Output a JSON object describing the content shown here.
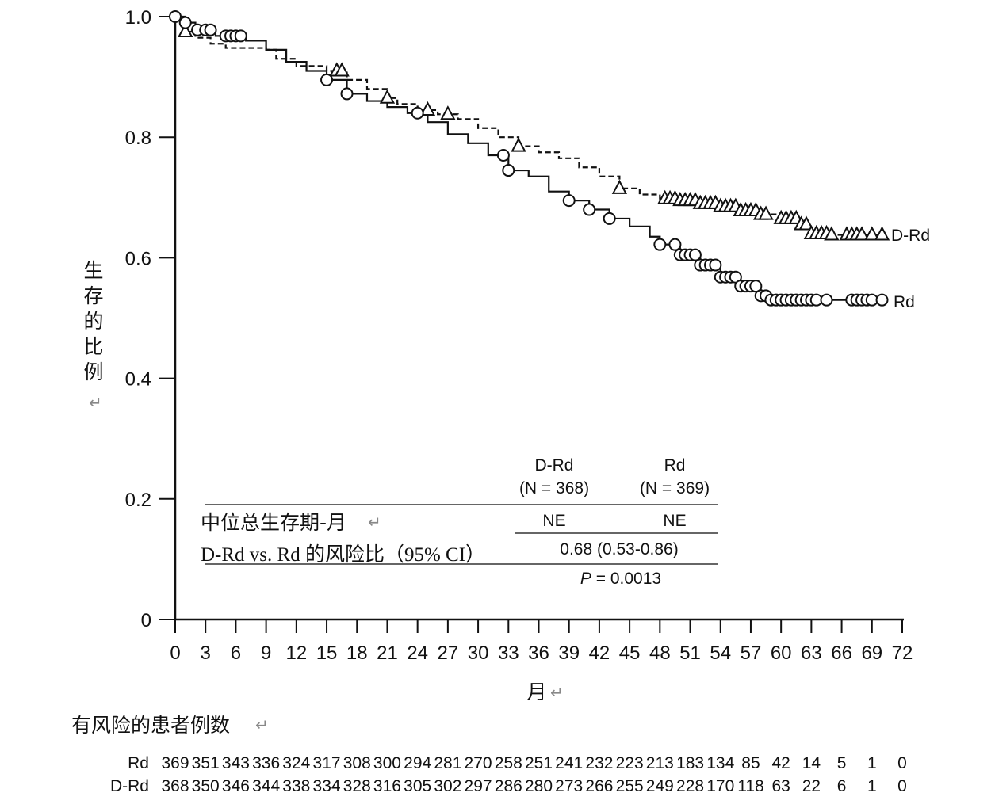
{
  "chart_data": {
    "type": "line",
    "xlabel": "月",
    "ylabel": "生存的比例",
    "xlim": [
      0,
      72
    ],
    "ylim": [
      0,
      1.0
    ],
    "x_ticks": [
      0,
      3,
      6,
      9,
      12,
      15,
      18,
      21,
      24,
      27,
      30,
      33,
      36,
      39,
      42,
      45,
      48,
      51,
      54,
      57,
      60,
      63,
      66,
      69,
      72
    ],
    "y_ticks": [
      0,
      0.2,
      0.4,
      0.6,
      0.8,
      1.0
    ],
    "y_tick_labels": [
      "0",
      "0.2",
      "0.4",
      "0.6",
      "0.8",
      "1.0"
    ],
    "grid": false,
    "series": [
      {
        "name": "D-Rd",
        "line_style": "dashed",
        "marker": "triangle",
        "color": "#111111",
        "points": [
          [
            0,
            1.0
          ],
          [
            0.8,
            0.975
          ],
          [
            2,
            0.965
          ],
          [
            3.5,
            0.955
          ],
          [
            5,
            0.948
          ],
          [
            9,
            0.945
          ],
          [
            10,
            0.93
          ],
          [
            12,
            0.918
          ],
          [
            15,
            0.91
          ],
          [
            17,
            0.895
          ],
          [
            19,
            0.88
          ],
          [
            21,
            0.865
          ],
          [
            22,
            0.855
          ],
          [
            24,
            0.845
          ],
          [
            26,
            0.838
          ],
          [
            28,
            0.83
          ],
          [
            30,
            0.815
          ],
          [
            32,
            0.8
          ],
          [
            34,
            0.785
          ],
          [
            36,
            0.775
          ],
          [
            38,
            0.765
          ],
          [
            40,
            0.75
          ],
          [
            42,
            0.735
          ],
          [
            44,
            0.715
          ],
          [
            46,
            0.705
          ],
          [
            48,
            0.698
          ],
          [
            50,
            0.695
          ],
          [
            52,
            0.69
          ],
          [
            54,
            0.685
          ],
          [
            56,
            0.678
          ],
          [
            58,
            0.672
          ],
          [
            60,
            0.665
          ],
          [
            62,
            0.655
          ],
          [
            63,
            0.64
          ],
          [
            65,
            0.638
          ],
          [
            70,
            0.638
          ]
        ],
        "censor_x": [
          1,
          16,
          16.5,
          21,
          25,
          27,
          34,
          44,
          48.5,
          49,
          49.5,
          50,
          50.5,
          51,
          51.5,
          52,
          52.5,
          53,
          53.5,
          54,
          54.5,
          55,
          55.5,
          56,
          56.5,
          57,
          57.5,
          58,
          58.5,
          60,
          60.5,
          61,
          61.5,
          62,
          62.5,
          63,
          63.5,
          64,
          64.5,
          65,
          66.5,
          67,
          67.5,
          68,
          69,
          70
        ]
      },
      {
        "name": "Rd",
        "line_style": "solid",
        "marker": "circle",
        "color": "#111111",
        "points": [
          [
            0,
            1.0
          ],
          [
            1,
            0.99
          ],
          [
            2,
            0.978
          ],
          [
            4,
            0.968
          ],
          [
            7,
            0.96
          ],
          [
            9,
            0.945
          ],
          [
            11,
            0.925
          ],
          [
            13,
            0.91
          ],
          [
            15,
            0.895
          ],
          [
            17,
            0.872
          ],
          [
            19,
            0.86
          ],
          [
            21,
            0.85
          ],
          [
            23,
            0.84
          ],
          [
            25,
            0.825
          ],
          [
            27,
            0.805
          ],
          [
            29,
            0.79
          ],
          [
            31,
            0.77
          ],
          [
            33,
            0.745
          ],
          [
            35,
            0.735
          ],
          [
            37,
            0.71
          ],
          [
            39,
            0.695
          ],
          [
            41,
            0.68
          ],
          [
            43,
            0.665
          ],
          [
            45,
            0.652
          ],
          [
            47,
            0.635
          ],
          [
            48,
            0.622
          ],
          [
            50,
            0.605
          ],
          [
            52,
            0.588
          ],
          [
            54,
            0.568
          ],
          [
            56,
            0.553
          ],
          [
            58,
            0.537
          ],
          [
            59,
            0.53
          ],
          [
            70,
            0.53
          ]
        ],
        "censor_x": [
          0,
          1,
          2.2,
          3,
          3.5,
          5,
          5.5,
          6,
          6.5,
          15,
          17,
          24,
          32.5,
          33,
          39,
          41,
          43,
          48,
          49.5,
          50,
          50.5,
          51,
          51.5,
          52,
          52.5,
          53,
          53.5,
          54,
          54.5,
          55,
          55.5,
          56,
          56.5,
          57,
          57.5,
          58,
          58.5,
          59,
          59.5,
          60,
          60.5,
          61,
          61.5,
          62,
          62.5,
          63,
          63.5,
          64.5,
          67,
          67.5,
          68,
          68.5,
          69,
          70
        ]
      }
    ],
    "series_labels": [
      "D-Rd",
      "Rd"
    ],
    "summary_table": {
      "columns": [
        {
          "name": "D-Rd",
          "n": "(N = 368)"
        },
        {
          "name": "Rd",
          "n": "(N = 369)"
        }
      ],
      "rows": [
        {
          "label": "中位总生存期-月",
          "values": [
            "NE",
            "NE"
          ]
        },
        {
          "label": "D-Rd vs. Rd 的风险比（95% CI）",
          "value": "0.68 (0.53-0.86)"
        }
      ],
      "p_label": "P",
      "p_value": " = 0.0013"
    },
    "at_risk": {
      "title": "有风险的患者例数",
      "rows": [
        {
          "name": "Rd",
          "values": [
            "369",
            "351",
            "343",
            "336",
            "324",
            "317",
            "308",
            "300",
            "294",
            "281",
            "270",
            "258",
            "251",
            "241",
            "232",
            "223",
            "213",
            "183",
            "134",
            "85",
            "42",
            "14",
            "5",
            "1",
            "0"
          ]
        },
        {
          "name": "D-Rd",
          "values": [
            "368",
            "350",
            "346",
            "344",
            "338",
            "334",
            "328",
            "316",
            "305",
            "302",
            "297",
            "286",
            "280",
            "273",
            "266",
            "255",
            "249",
            "228",
            "170",
            "118",
            "63",
            "22",
            "6",
            "1",
            "0"
          ]
        }
      ]
    }
  }
}
